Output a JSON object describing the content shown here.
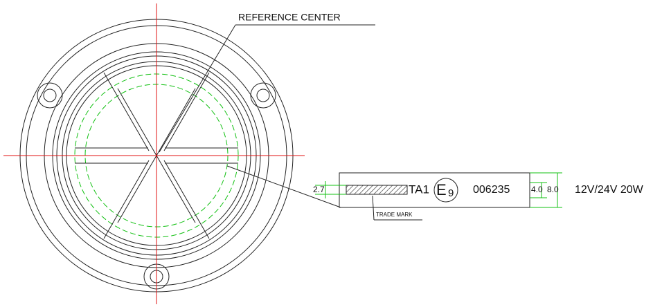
{
  "drawing": {
    "reference_label": "REFERENCE CENTER",
    "trade_mark_label": "TRADE MARK",
    "marking": {
      "code": "TA1",
      "e_letter": "E",
      "e_number": "9",
      "approval_number": "006235",
      "rating": "12V/24V 20W"
    },
    "dimensions": {
      "hatch_height": "2.7",
      "text_height": "4.0",
      "box_height": "8.0"
    }
  }
}
